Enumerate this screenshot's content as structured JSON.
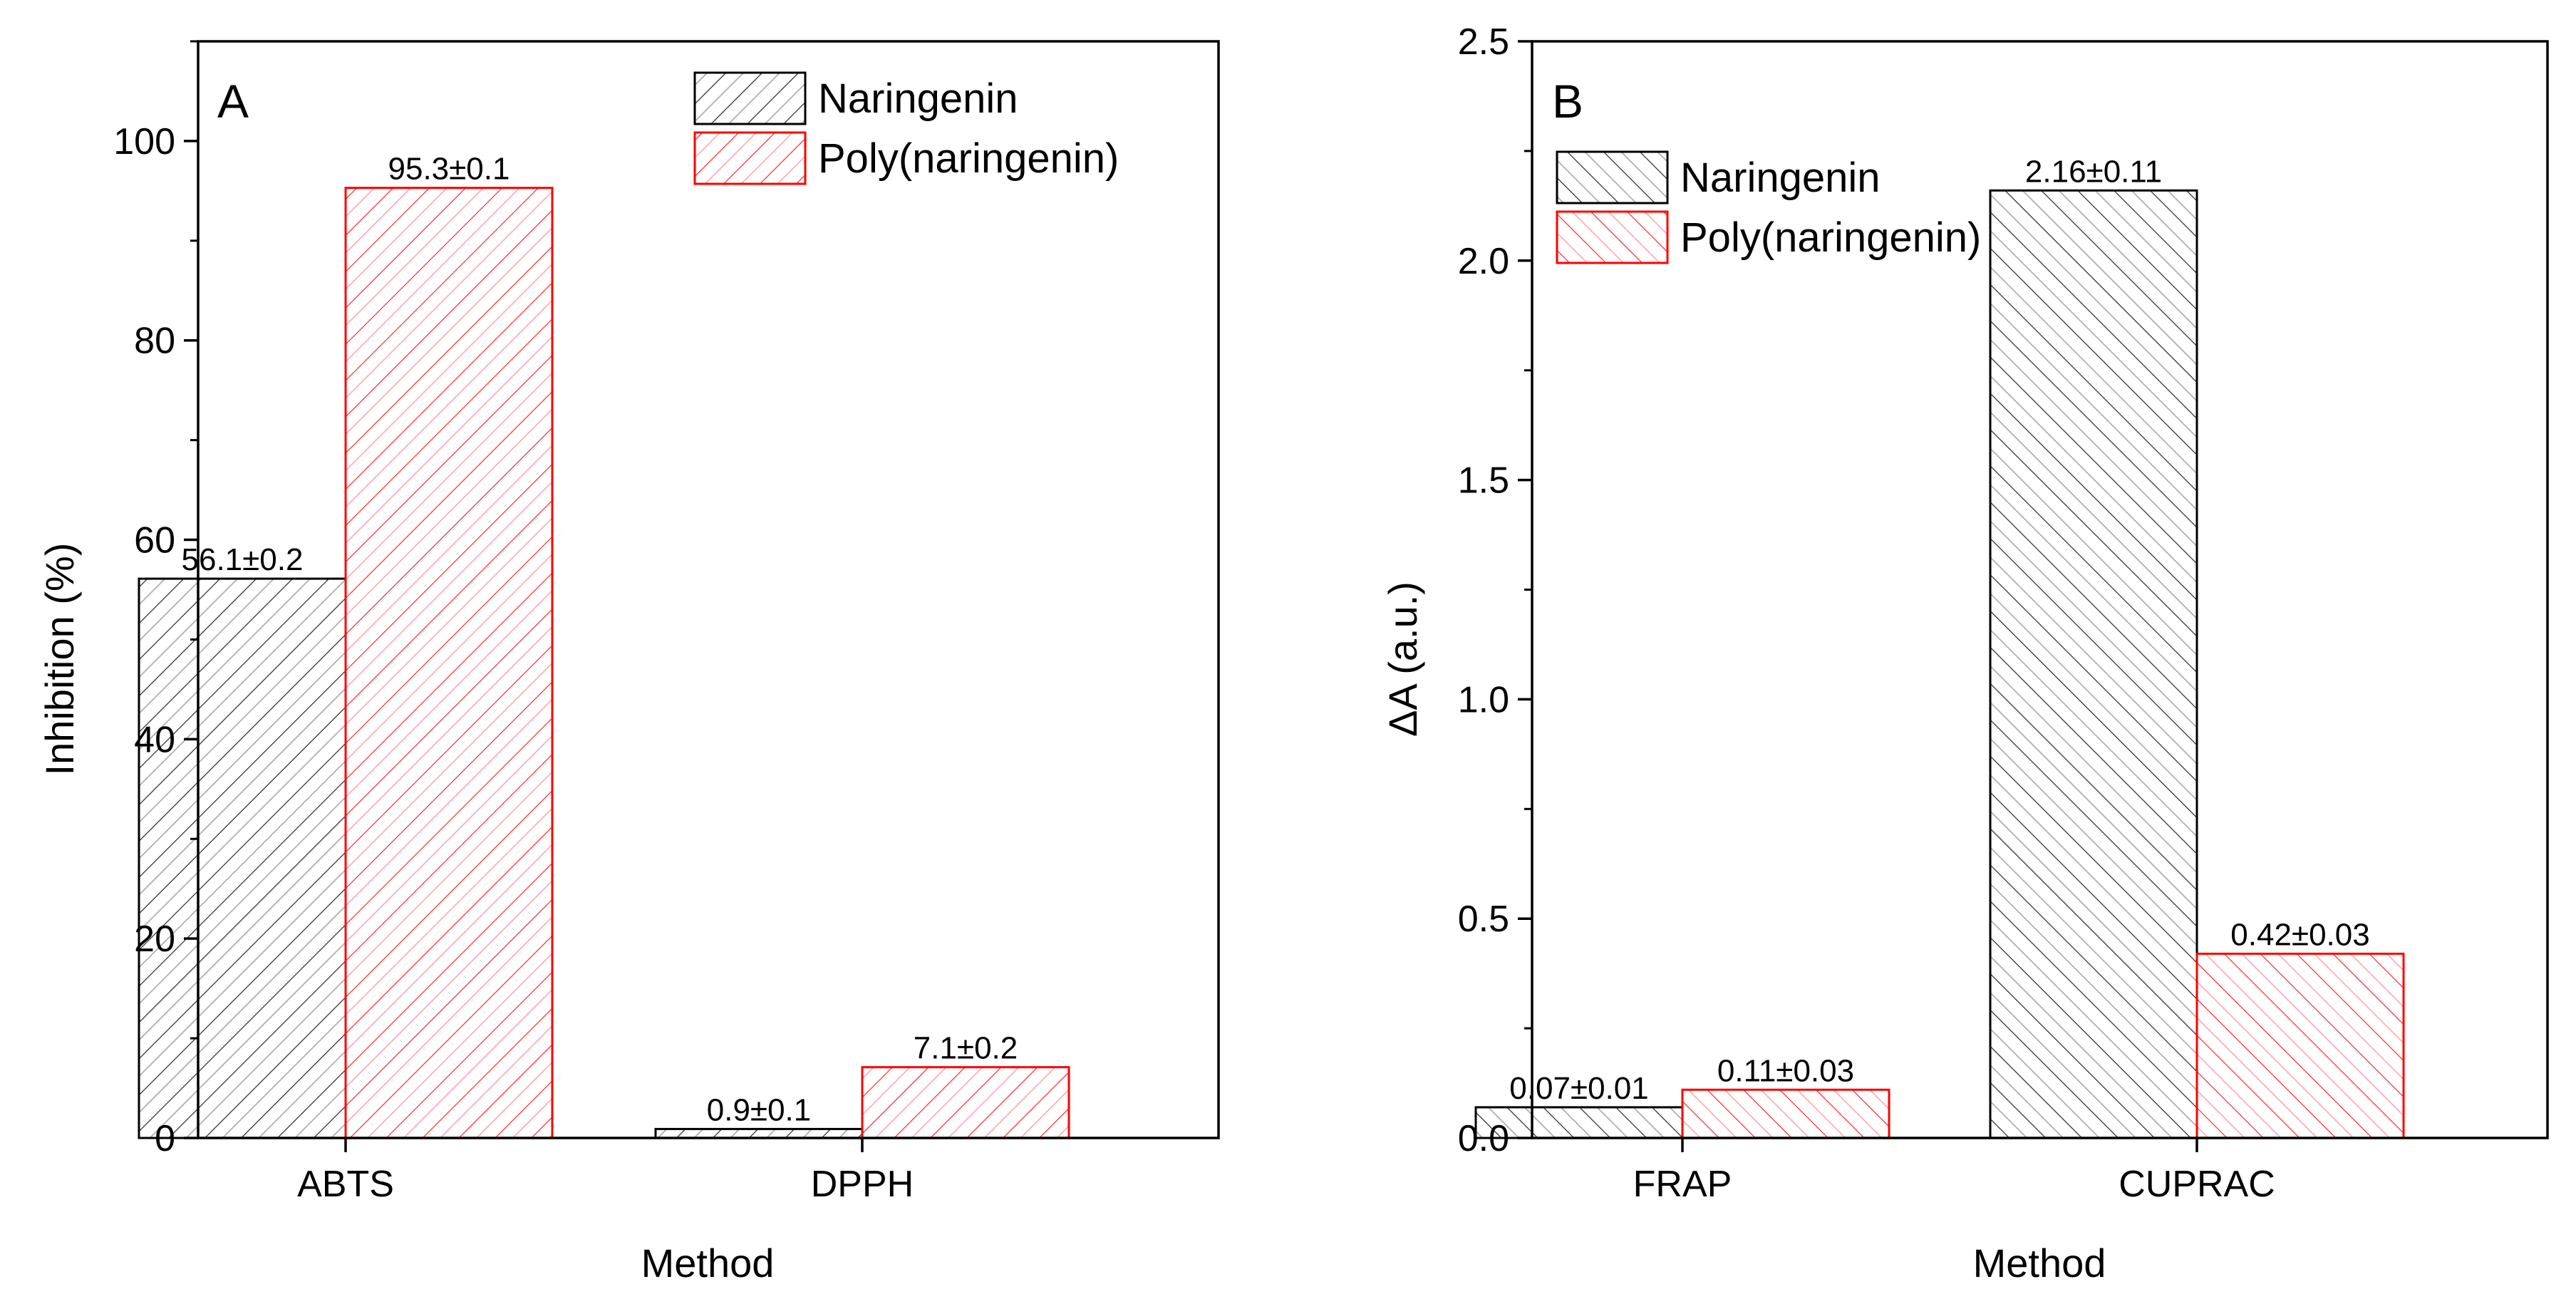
{
  "chart_data": [
    {
      "type": "bar",
      "panel_label": "A",
      "categories": [
        "ABTS",
        "DPPH"
      ],
      "series": [
        {
          "name": "Naringenin",
          "values": [
            56.1,
            0.9
          ],
          "labels": [
            "56.1±0.2",
            "0.9±0.1"
          ],
          "color": "#000000",
          "hatch": "forward"
        },
        {
          "name": "Poly(naringenin)",
          "values": [
            95.3,
            7.1
          ],
          "labels": [
            "95.3±0.1",
            "7.1±0.2"
          ],
          "color": "#ff0000",
          "hatch": "forward"
        }
      ],
      "xlabel": "Method",
      "ylabel": "Inhibition (%)",
      "ylim": [
        0,
        110
      ],
      "yticks": [
        0,
        20,
        40,
        60,
        80,
        100
      ],
      "ytick_labels": [
        "0",
        "20",
        "40",
        "60",
        "80",
        "100"
      ],
      "legend_position": "top-right",
      "grid": false
    },
    {
      "type": "bar",
      "panel_label": "B",
      "categories": [
        "FRAP",
        "CUPRAC"
      ],
      "series": [
        {
          "name": "Naringenin",
          "values": [
            0.07,
            2.16
          ],
          "labels": [
            "0.07±0.01",
            "2.16±0.11"
          ],
          "color": "#000000",
          "hatch": "backward"
        },
        {
          "name": "Poly(naringenin)",
          "values": [
            0.11,
            0.42
          ],
          "labels": [
            "0.11±0.03",
            "0.42±0.03"
          ],
          "color": "#ff0000",
          "hatch": "backward"
        }
      ],
      "xlabel": "Method",
      "ylabel": "ΔA (a.u.)",
      "ylim": [
        0,
        2.5
      ],
      "yticks": [
        0,
        0.5,
        1.0,
        1.5,
        2.0,
        2.5
      ],
      "ytick_labels": [
        "0.0",
        "0.5",
        "1.0",
        "1.5",
        "2.0",
        "2.5"
      ],
      "legend_position": "top-left",
      "grid": false
    }
  ]
}
